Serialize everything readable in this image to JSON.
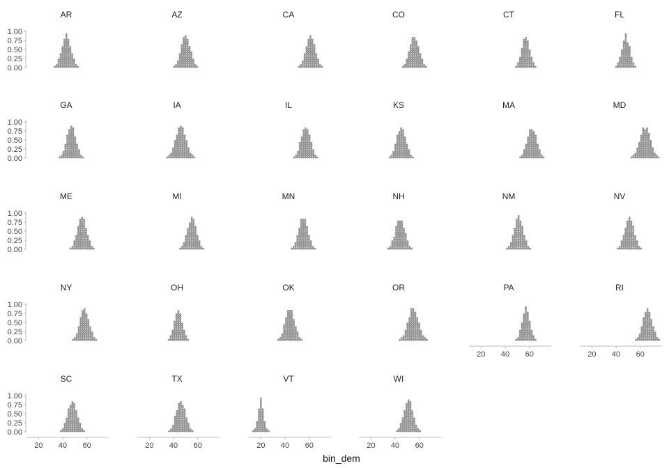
{
  "chart_data": {
    "type": "dotplot",
    "xlabel": "bin_dem",
    "ylabel": "",
    "xlim": [
      10,
      78
    ],
    "ylim": [
      0,
      1
    ],
    "x_ticks": [
      20,
      40,
      60
    ],
    "y_ticks": [
      0.0,
      0.25,
      0.5,
      0.75,
      1.0
    ],
    "y_tick_labels": [
      "0.00",
      "0.25",
      "0.50",
      "0.75",
      "1.00"
    ],
    "grid": false,
    "legend": "none",
    "dot_color": "#9a9a9a",
    "panels": [
      {
        "state": "AR",
        "center": 43,
        "spread": 7
      },
      {
        "state": "AZ",
        "center": 50,
        "spread": 7
      },
      {
        "state": "CA",
        "center": 61,
        "spread": 7
      },
      {
        "state": "CO",
        "center": 56,
        "spread": 7
      },
      {
        "state": "CT",
        "center": 57,
        "spread": 6
      },
      {
        "state": "FL",
        "center": 48,
        "spread": 6
      },
      {
        "state": "GA",
        "center": 47,
        "spread": 7
      },
      {
        "state": "IA",
        "center": 46,
        "spread": 8
      },
      {
        "state": "IL",
        "center": 57,
        "spread": 7
      },
      {
        "state": "KS",
        "center": 45,
        "spread": 7
      },
      {
        "state": "MA",
        "center": 62,
        "spread": 7
      },
      {
        "state": "MD",
        "center": 64,
        "spread": 8
      },
      {
        "state": "ME",
        "center": 56,
        "spread": 7
      },
      {
        "state": "MI",
        "center": 55,
        "spread": 7
      },
      {
        "state": "MN",
        "center": 55,
        "spread": 7
      },
      {
        "state": "NH",
        "center": 44,
        "spread": 7
      },
      {
        "state": "NM",
        "center": 51,
        "spread": 7
      },
      {
        "state": "NV",
        "center": 51,
        "spread": 7
      },
      {
        "state": "NY",
        "center": 58,
        "spread": 7
      },
      {
        "state": "OH",
        "center": 44,
        "spread": 6
      },
      {
        "state": "OK",
        "center": 44,
        "spread": 7
      },
      {
        "state": "OR",
        "center": 55,
        "spread": 8
      },
      {
        "state": "PA",
        "center": 57,
        "spread": 6
      },
      {
        "state": "RI",
        "center": 66,
        "spread": 7
      },
      {
        "state": "SC",
        "center": 48,
        "spread": 7
      },
      {
        "state": "TX",
        "center": 46,
        "spread": 7
      },
      {
        "state": "VT",
        "center": 20,
        "spread": 4
      },
      {
        "state": "WI",
        "center": 51,
        "spread": 7
      }
    ]
  }
}
